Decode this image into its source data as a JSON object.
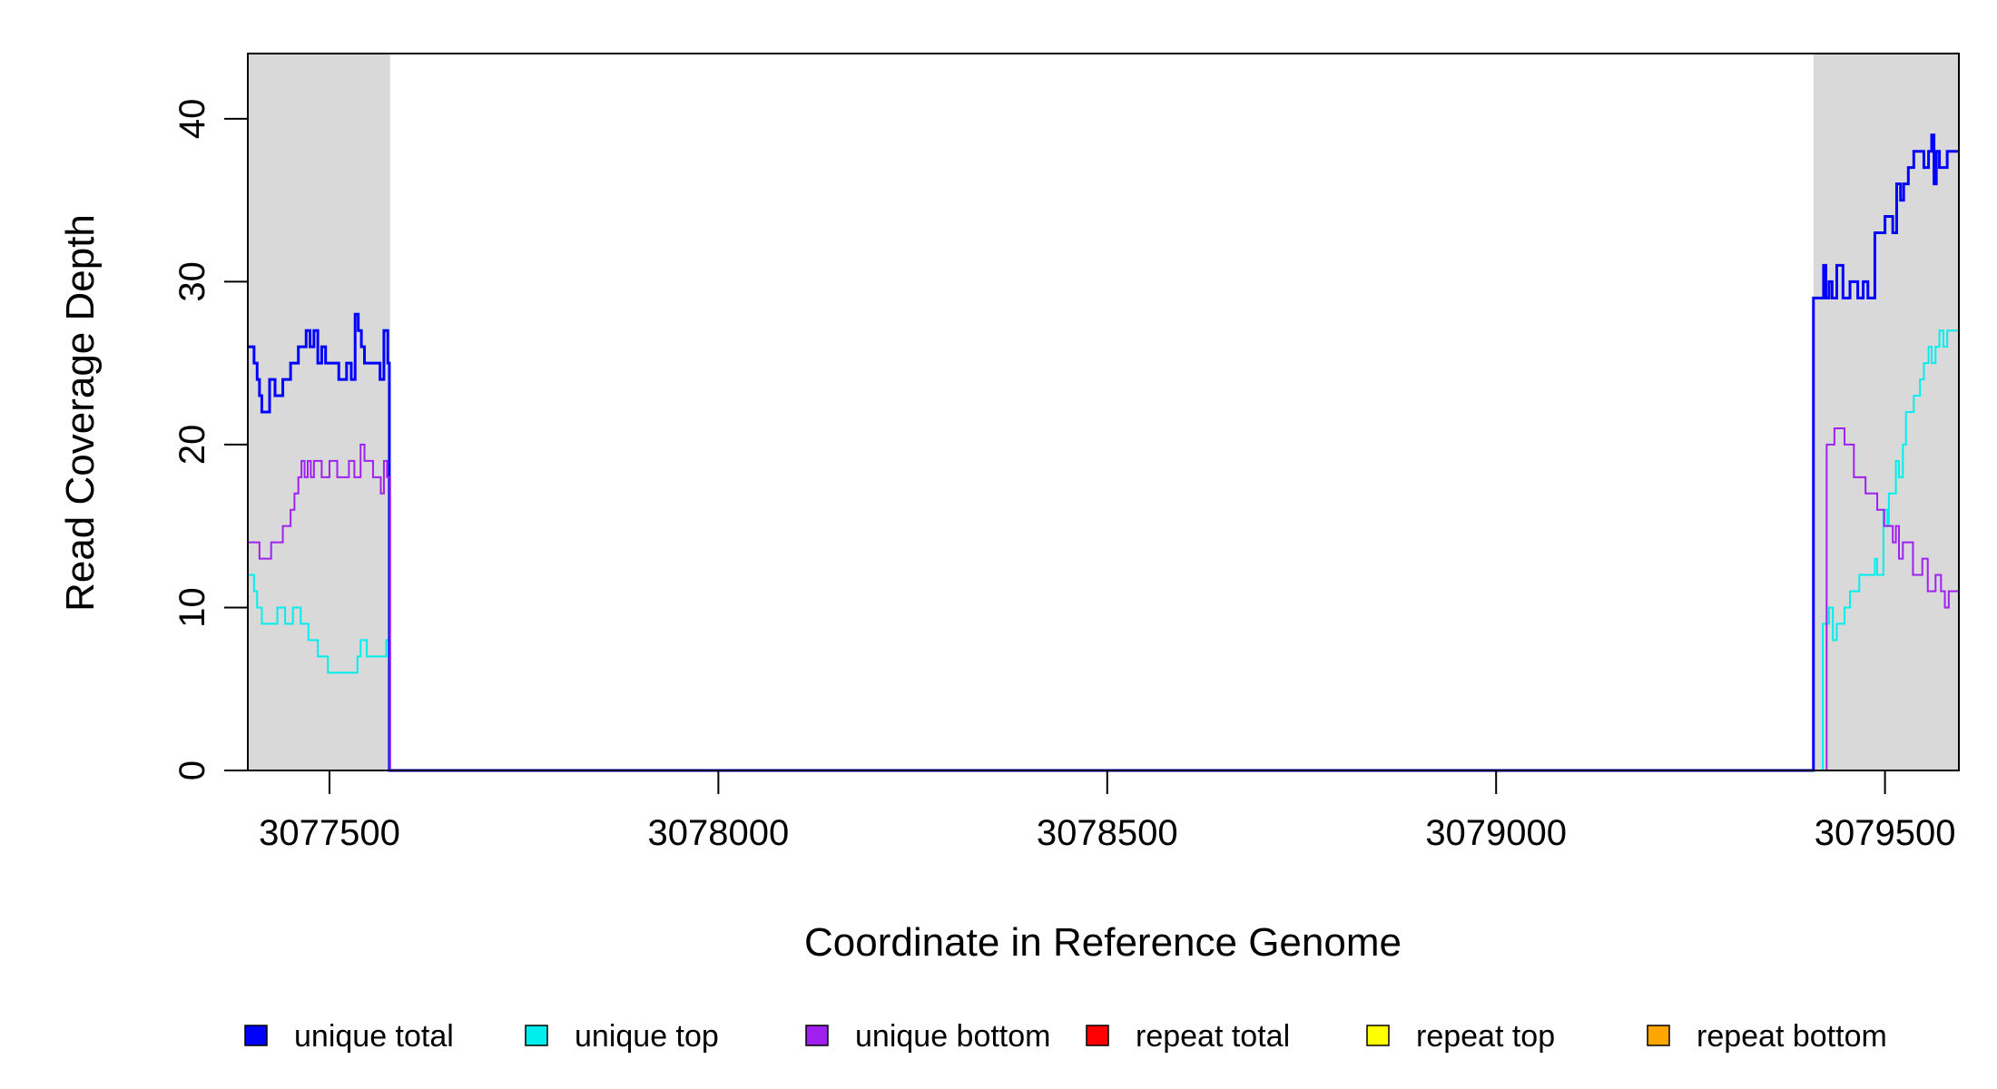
{
  "chart_data": {
    "type": "line",
    "xlabel": "Coordinate in Reference Genome",
    "ylabel": "Read Coverage Depth",
    "xlim": [
      3077395,
      3079595
    ],
    "ylim": [
      0,
      44
    ],
    "x_ticks": [
      3077500,
      3078000,
      3078500,
      3079000,
      3079500
    ],
    "x_tick_labels": [
      "3077500",
      "3078000",
      "3078500",
      "3079000",
      "3079500"
    ],
    "y_ticks": [
      0,
      10,
      20,
      30,
      40
    ],
    "y_tick_labels": [
      "0",
      "10",
      "20",
      "30",
      "40"
    ],
    "shaded_regions": [
      [
        3077395,
        3077578
      ],
      [
        3079408,
        3079595
      ]
    ],
    "shade_color": "#d9d9d9",
    "legend_position": "bottom",
    "series": [
      {
        "name": "unique total",
        "color": "#0000ff",
        "width": 3,
        "x": [
          3077395,
          3077403,
          3077407,
          3077410,
          3077413,
          3077423,
          3077430,
          3077440,
          3077450,
          3077460,
          3077470,
          3077475,
          3077480,
          3077485,
          3077490,
          3077495,
          3077500,
          3077512,
          3077522,
          3077528,
          3077533,
          3077537,
          3077541,
          3077545,
          3077555,
          3077565,
          3077570,
          3077575,
          3077577,
          3077578,
          3079408,
          3079418,
          3079421,
          3079424,
          3079428,
          3079432,
          3079438,
          3079446,
          3079455,
          3079465,
          3079472,
          3079478,
          3079487,
          3079495,
          3079500,
          3079506,
          3079510,
          3079515,
          3079520,
          3079524,
          3079530,
          3079537,
          3079550,
          3079556,
          3079560,
          3079563,
          3079566,
          3079570,
          3079575,
          3079580,
          3079595
        ],
        "y": [
          26,
          25,
          24,
          23,
          22,
          24,
          23,
          24,
          25,
          26,
          27,
          26,
          27,
          25,
          26,
          25,
          25,
          24,
          25,
          24,
          28,
          27,
          26,
          25,
          25,
          24,
          27,
          25,
          0,
          0,
          29,
          29,
          31,
          29,
          30,
          29,
          31,
          29,
          30,
          29,
          30,
          29,
          33,
          33,
          34,
          34,
          33,
          36,
          35,
          36,
          37,
          38,
          37,
          38,
          39,
          36,
          38,
          37,
          37,
          38,
          38
        ]
      },
      {
        "name": "unique top",
        "color": "#00eeee",
        "width": 2,
        "x": [
          3077395,
          3077403,
          3077407,
          3077413,
          3077428,
          3077433,
          3077443,
          3077453,
          3077463,
          3077468,
          3077473,
          3077478,
          3077485,
          3077498,
          3077518,
          3077525,
          3077532,
          3077536,
          3077540,
          3077548,
          3077556,
          3077566,
          3077573,
          3077577,
          3077578,
          3079408,
          3079420,
          3079425,
          3079428,
          3079433,
          3079438,
          3079448,
          3079455,
          3079460,
          3079467,
          3079478,
          3079483,
          3079487,
          3079490,
          3079498,
          3079503,
          3079505,
          3079510,
          3079514,
          3079518,
          3079521,
          3079523,
          3079527,
          3079530,
          3079537,
          3079545,
          3079550,
          3079556,
          3079560,
          3079565,
          3079570,
          3079575,
          3079580,
          3079595
        ],
        "y": [
          12,
          11,
          10,
          9,
          9,
          10,
          9,
          10,
          9,
          9,
          8,
          8,
          7,
          6,
          6,
          6,
          6,
          7,
          8,
          7,
          7,
          7,
          8,
          8,
          0,
          0,
          9,
          9,
          10,
          8,
          9,
          10,
          11,
          11,
          12,
          12,
          12,
          13,
          12,
          16,
          15,
          17,
          17,
          19,
          18,
          18,
          20,
          22,
          22,
          23,
          24,
          25,
          26,
          25,
          26,
          27,
          26,
          27,
          27
        ]
      },
      {
        "name": "unique bottom",
        "color": "#a020f0",
        "width": 2,
        "x": [
          3077395,
          3077410,
          3077425,
          3077440,
          3077450,
          3077455,
          3077460,
          3077464,
          3077468,
          3077472,
          3077476,
          3077480,
          3077485,
          3077490,
          3077500,
          3077510,
          3077518,
          3077525,
          3077532,
          3077540,
          3077545,
          3077550,
          3077556,
          3077566,
          3077570,
          3077574,
          3077578,
          3079408,
          3079425,
          3079435,
          3079448,
          3079460,
          3079475,
          3079490,
          3079499,
          3079504,
          3079510,
          3079514,
          3079518,
          3079523,
          3079528,
          3079536,
          3079540,
          3079548,
          3079555,
          3079565,
          3079572,
          3079577,
          3079582,
          3079595
        ],
        "y": [
          14,
          13,
          14,
          15,
          16,
          17,
          18,
          19,
          18,
          19,
          18,
          19,
          19,
          18,
          19,
          18,
          18,
          19,
          18,
          20,
          19,
          19,
          18,
          17,
          19,
          18,
          0,
          0,
          20,
          21,
          20,
          18,
          17,
          16,
          15,
          15,
          14,
          15,
          13,
          14,
          14,
          12,
          12,
          13,
          11,
          12,
          11,
          10,
          11,
          11
        ]
      },
      {
        "name": "repeat total",
        "color": "#ff0000",
        "width": 2,
        "x": [
          3077395,
          3079595
        ],
        "y": [
          0,
          0
        ]
      },
      {
        "name": "repeat top",
        "color": "#ffff00",
        "width": 2,
        "x": [
          3077395,
          3079595
        ],
        "y": [
          0,
          0
        ]
      },
      {
        "name": "repeat bottom",
        "color": "#ffa500",
        "width": 2,
        "x": [
          3077395,
          3079595
        ],
        "y": [
          0,
          0
        ]
      }
    ]
  }
}
